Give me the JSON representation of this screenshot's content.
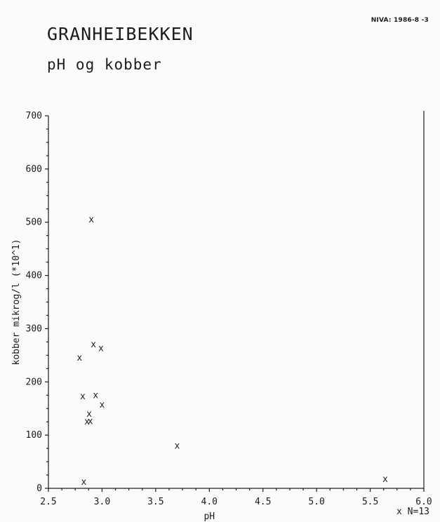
{
  "header": {
    "reference": "NIVA: 1986-8 -3",
    "title": "GRANHEIBEKKEN",
    "subtitle": "pH og kobber"
  },
  "chart_data": {
    "type": "scatter",
    "title": "GRANHEIBEKKEN",
    "subtitle": "pH og kobber",
    "xlabel": "pH",
    "ylabel": "kobber mikrog/l (*10^1)",
    "xlim": [
      2.5,
      6.0
    ],
    "ylim": [
      0,
      700
    ],
    "xticks": [
      2.5,
      3.0,
      3.5,
      4.0,
      4.5,
      5.0,
      5.5,
      6.0
    ],
    "xtick_labels": [
      "2.5",
      "3.0",
      "3.5",
      "4.0",
      "4.5",
      "5.0",
      "5.5",
      "6.0"
    ],
    "yticks": [
      0,
      100,
      200,
      300,
      400,
      500,
      600,
      700
    ],
    "ytick_labels": [
      "0",
      "100",
      "200",
      "300",
      "400",
      "500",
      "600",
      "700"
    ],
    "marker": "x",
    "legend": "x  N=13",
    "grid": false,
    "series": [
      {
        "points": [
          {
            "x": 2.79,
            "y": 245
          },
          {
            "x": 2.82,
            "y": 173
          },
          {
            "x": 2.83,
            "y": 12
          },
          {
            "x": 2.86,
            "y": 125
          },
          {
            "x": 2.88,
            "y": 140
          },
          {
            "x": 2.89,
            "y": 126
          },
          {
            "x": 2.9,
            "y": 505
          },
          {
            "x": 2.92,
            "y": 270
          },
          {
            "x": 2.94,
            "y": 175
          },
          {
            "x": 2.99,
            "y": 263
          },
          {
            "x": 3.0,
            "y": 157
          },
          {
            "x": 3.7,
            "y": 80
          },
          {
            "x": 5.64,
            "y": 17
          }
        ]
      }
    ]
  }
}
